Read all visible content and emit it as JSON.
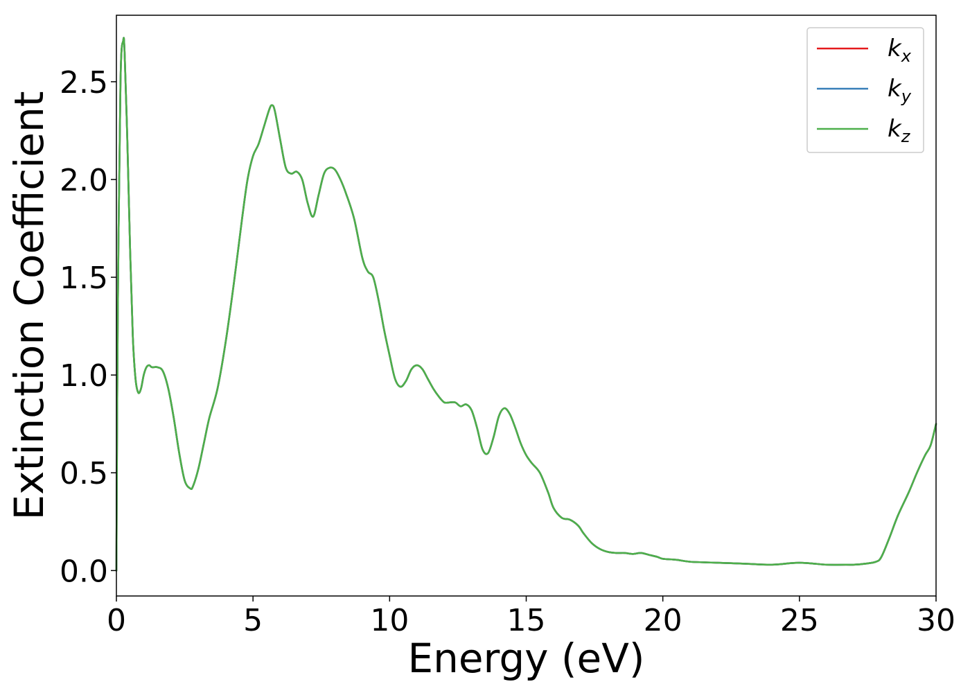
{
  "chart_data": {
    "type": "line",
    "xlabel": "Energy (eV)",
    "ylabel": "Extinction Coefficient",
    "xlim": [
      0,
      30
    ],
    "ylim": [
      -0.13,
      2.84
    ],
    "xticks": [
      0,
      5,
      10,
      15,
      20,
      25,
      30
    ],
    "xtick_labels": [
      "0",
      "5",
      "10",
      "15",
      "20",
      "25",
      "30"
    ],
    "yticks": [
      0.0,
      0.5,
      1.0,
      1.5,
      2.0,
      2.5
    ],
    "ytick_labels": [
      "0.0",
      "0.5",
      "1.0",
      "1.5",
      "2.0",
      "2.5"
    ],
    "grid": false,
    "legend_position": "top-right",
    "x": [
      0,
      0.05,
      0.15,
      0.25,
      0.3,
      0.4,
      0.5,
      0.6,
      0.7,
      0.8,
      0.9,
      1.0,
      1.1,
      1.2,
      1.3,
      1.5,
      1.7,
      1.9,
      2.1,
      2.3,
      2.5,
      2.7,
      2.8,
      3.0,
      3.2,
      3.4,
      3.7,
      4.0,
      4.3,
      4.6,
      4.8,
      5.0,
      5.2,
      5.4,
      5.6,
      5.7,
      5.8,
      6.0,
      6.2,
      6.4,
      6.6,
      6.8,
      7.0,
      7.2,
      7.4,
      7.6,
      7.8,
      8.0,
      8.2,
      8.4,
      8.7,
      9.0,
      9.2,
      9.4,
      9.6,
      9.8,
      10.0,
      10.2,
      10.4,
      10.6,
      10.8,
      11.0,
      11.2,
      11.4,
      11.6,
      11.8,
      12.0,
      12.2,
      12.4,
      12.6,
      12.8,
      13.0,
      13.2,
      13.4,
      13.6,
      13.8,
      14.0,
      14.2,
      14.4,
      14.6,
      14.8,
      15.0,
      15.2,
      15.5,
      15.8,
      16.0,
      16.3,
      16.6,
      16.9,
      17.1,
      17.4,
      17.7,
      18.0,
      18.3,
      18.6,
      18.9,
      19.2,
      19.5,
      19.8,
      20.0,
      20.5,
      21.0,
      22.0,
      23.0,
      24.0,
      25.0,
      26.0,
      26.7,
      27.0,
      27.4,
      27.8,
      28.0,
      28.3,
      28.6,
      29.0,
      29.3,
      29.6,
      29.8,
      30.0
    ],
    "series": [
      {
        "name": "k_x",
        "color": "#e41a1c",
        "values": [
          0.0,
          1.3,
          2.5,
          2.71,
          2.65,
          2.2,
          1.65,
          1.2,
          0.98,
          0.91,
          0.93,
          1.0,
          1.04,
          1.05,
          1.04,
          1.04,
          1.02,
          0.93,
          0.78,
          0.6,
          0.46,
          0.42,
          0.43,
          0.52,
          0.65,
          0.78,
          0.93,
          1.17,
          1.47,
          1.8,
          2.0,
          2.12,
          2.18,
          2.27,
          2.36,
          2.38,
          2.35,
          2.2,
          2.06,
          2.03,
          2.04,
          2.0,
          1.88,
          1.81,
          1.92,
          2.03,
          2.06,
          2.05,
          2.0,
          1.93,
          1.8,
          1.6,
          1.53,
          1.5,
          1.38,
          1.23,
          1.1,
          0.98,
          0.94,
          0.97,
          1.03,
          1.05,
          1.03,
          0.98,
          0.93,
          0.89,
          0.86,
          0.86,
          0.86,
          0.84,
          0.85,
          0.82,
          0.73,
          0.62,
          0.6,
          0.68,
          0.79,
          0.83,
          0.8,
          0.73,
          0.65,
          0.59,
          0.55,
          0.5,
          0.4,
          0.32,
          0.27,
          0.26,
          0.23,
          0.19,
          0.14,
          0.11,
          0.095,
          0.09,
          0.09,
          0.085,
          0.09,
          0.08,
          0.07,
          0.06,
          0.055,
          0.045,
          0.04,
          0.035,
          0.03,
          0.04,
          0.03,
          0.03,
          0.03,
          0.035,
          0.045,
          0.07,
          0.17,
          0.28,
          0.4,
          0.5,
          0.59,
          0.64,
          0.75
        ]
      },
      {
        "name": "k_y",
        "color": "#377eb8",
        "values": [
          0.0,
          1.3,
          2.5,
          2.71,
          2.65,
          2.2,
          1.65,
          1.2,
          0.98,
          0.91,
          0.93,
          1.0,
          1.04,
          1.05,
          1.04,
          1.04,
          1.02,
          0.93,
          0.78,
          0.6,
          0.46,
          0.42,
          0.43,
          0.52,
          0.65,
          0.78,
          0.93,
          1.17,
          1.47,
          1.8,
          2.0,
          2.12,
          2.18,
          2.27,
          2.36,
          2.38,
          2.35,
          2.2,
          2.06,
          2.03,
          2.04,
          2.0,
          1.88,
          1.81,
          1.92,
          2.03,
          2.06,
          2.05,
          2.0,
          1.93,
          1.8,
          1.6,
          1.53,
          1.5,
          1.38,
          1.23,
          1.1,
          0.98,
          0.94,
          0.97,
          1.03,
          1.05,
          1.03,
          0.98,
          0.93,
          0.89,
          0.86,
          0.86,
          0.86,
          0.84,
          0.85,
          0.82,
          0.73,
          0.62,
          0.6,
          0.68,
          0.79,
          0.83,
          0.8,
          0.73,
          0.65,
          0.59,
          0.55,
          0.5,
          0.4,
          0.32,
          0.27,
          0.26,
          0.23,
          0.19,
          0.14,
          0.11,
          0.095,
          0.09,
          0.09,
          0.085,
          0.09,
          0.08,
          0.07,
          0.06,
          0.055,
          0.045,
          0.04,
          0.035,
          0.03,
          0.04,
          0.03,
          0.03,
          0.03,
          0.035,
          0.045,
          0.07,
          0.17,
          0.28,
          0.4,
          0.5,
          0.59,
          0.64,
          0.75
        ]
      },
      {
        "name": "k_z",
        "color": "#4daf4a",
        "values": [
          0.0,
          1.3,
          2.5,
          2.71,
          2.65,
          2.2,
          1.65,
          1.2,
          0.98,
          0.91,
          0.93,
          1.0,
          1.04,
          1.05,
          1.04,
          1.04,
          1.02,
          0.93,
          0.78,
          0.6,
          0.46,
          0.42,
          0.43,
          0.52,
          0.65,
          0.78,
          0.93,
          1.17,
          1.47,
          1.8,
          2.0,
          2.12,
          2.18,
          2.27,
          2.36,
          2.38,
          2.35,
          2.2,
          2.06,
          2.03,
          2.04,
          2.0,
          1.88,
          1.81,
          1.92,
          2.03,
          2.06,
          2.05,
          2.0,
          1.93,
          1.8,
          1.6,
          1.53,
          1.5,
          1.38,
          1.23,
          1.1,
          0.98,
          0.94,
          0.97,
          1.03,
          1.05,
          1.03,
          0.98,
          0.93,
          0.89,
          0.86,
          0.86,
          0.86,
          0.84,
          0.85,
          0.82,
          0.73,
          0.62,
          0.6,
          0.68,
          0.79,
          0.83,
          0.8,
          0.73,
          0.65,
          0.59,
          0.55,
          0.5,
          0.4,
          0.32,
          0.27,
          0.26,
          0.23,
          0.19,
          0.14,
          0.11,
          0.095,
          0.09,
          0.09,
          0.085,
          0.09,
          0.08,
          0.07,
          0.06,
          0.055,
          0.045,
          0.04,
          0.035,
          0.03,
          0.04,
          0.03,
          0.03,
          0.03,
          0.035,
          0.045,
          0.07,
          0.17,
          0.28,
          0.4,
          0.5,
          0.59,
          0.64,
          0.75
        ]
      }
    ],
    "legend": [
      {
        "base": "k",
        "sub": "x",
        "color": "#e41a1c"
      },
      {
        "base": "k",
        "sub": "y",
        "color": "#377eb8"
      },
      {
        "base": "k",
        "sub": "z",
        "color": "#4daf4a"
      }
    ]
  }
}
